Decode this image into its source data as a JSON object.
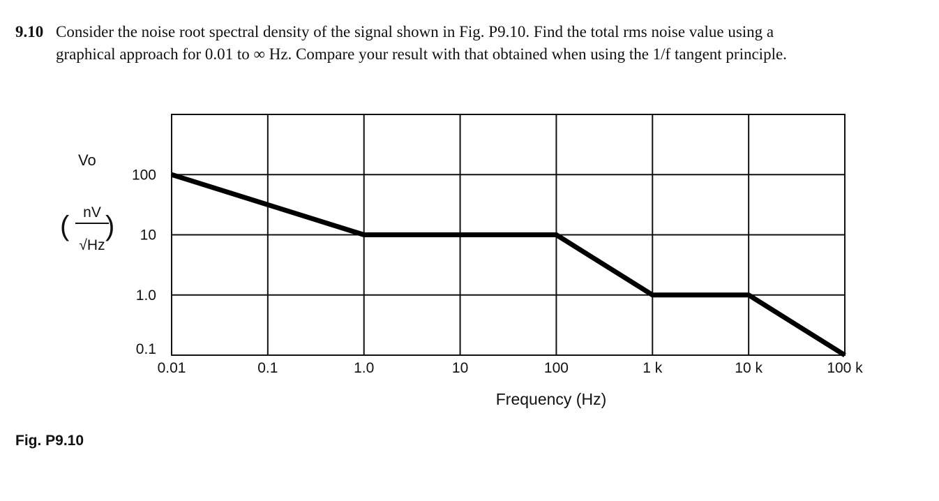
{
  "problem": {
    "number": "9.10",
    "line1": "Consider the noise root spectral density of the signal shown in Fig. P9.10. Find the total rms noise value using a",
    "line2": "graphical approach for 0.01 to ∞  Hz. Compare your result with that obtained when using the 1/f tangent principle."
  },
  "chart_data": {
    "type": "line",
    "title": "",
    "xlabel": "Frequency (Hz)",
    "ylabel_symbol": "Vo",
    "ylabel_unit_numerator": "nV",
    "ylabel_unit_denominator": "√Hz",
    "x_scale": "log",
    "y_scale": "log",
    "xlim": [
      0.01,
      100000
    ],
    "ylim": [
      0.1,
      1000
    ],
    "x_ticks": [
      0.01,
      0.1,
      1,
      10,
      100,
      1000,
      10000,
      100000
    ],
    "x_tick_labels": [
      "0.01",
      "0.1",
      "1.0",
      "10",
      "100",
      "1 k",
      "10 k",
      "100 k"
    ],
    "y_ticks": [
      0.1,
      1,
      10,
      100
    ],
    "y_tick_labels": [
      "0.1",
      "1.0",
      "10",
      "100"
    ],
    "grid": true,
    "series": [
      {
        "x": [
          0.01,
          1,
          100,
          1000,
          10000,
          100000
        ],
        "y": [
          100,
          10,
          10,
          1,
          1,
          0.1
        ]
      }
    ]
  },
  "caption": "Fig. P9.10"
}
